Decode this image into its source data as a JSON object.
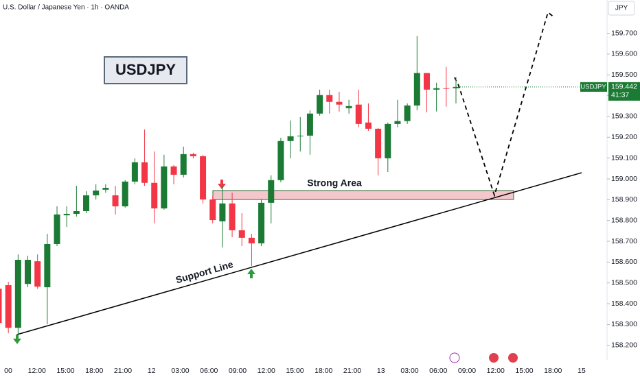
{
  "chart_data": {
    "type": "candlestick",
    "title": "U.S. Dollar / Japanese Yen · 1h · OANDA",
    "symbol_box": "USDJPY",
    "currency_button": "JPY",
    "annotations": [
      "Strong Area",
      "Support Line"
    ],
    "up_color": "#1b7a34",
    "down_color": "#f23645",
    "xlabels": [
      "00",
      "12:00",
      "15:00",
      "18:00",
      "21:00",
      "12",
      "03:00",
      "06:00",
      "09:00",
      "12:00",
      "15:00",
      "18:00",
      "21:00",
      "13",
      "03:00",
      "06:00",
      "09:00",
      "12:00",
      "15:00",
      "18:00",
      "15"
    ],
    "open": [
      158.472,
      158.489,
      158.284,
      158.495,
      158.604,
      158.479,
      158.687,
      158.825,
      158.832,
      158.845,
      158.921,
      158.948,
      158.921,
      158.868,
      158.987,
      159.08,
      158.981,
      158.858,
      159.06,
      159.02,
      159.119,
      159.109,
      158.901,
      158.796,
      158.882,
      158.753,
      158.717,
      158.69,
      158.885,
      158.994,
      159.182,
      159.205,
      159.208,
      159.314,
      159.403,
      159.37,
      159.34,
      159.357,
      159.271,
      159.241,
      159.099,
      159.264,
      159.278,
      159.353,
      159.509,
      159.429,
      159.436,
      159.436
    ],
    "high": [
      158.479,
      158.505,
      158.637,
      158.631,
      158.637,
      158.736,
      158.868,
      158.868,
      158.967,
      158.941,
      158.974,
      158.974,
      158.967,
      158.994,
      159.099,
      159.238,
      159.132,
      159.116,
      159.066,
      159.155,
      159.126,
      159.116,
      158.918,
      158.967,
      158.934,
      158.835,
      158.736,
      158.901,
      159.017,
      159.198,
      159.281,
      159.297,
      159.33,
      159.429,
      159.429,
      159.419,
      159.38,
      159.429,
      159.363,
      159.245,
      159.271,
      159.38,
      159.363,
      159.687,
      159.509,
      159.462,
      159.538,
      159.489
    ],
    "low": [
      158.301,
      158.258,
      158.248,
      158.479,
      158.472,
      158.301,
      158.677,
      158.769,
      158.819,
      158.835,
      158.901,
      158.934,
      158.829,
      158.862,
      158.974,
      158.967,
      158.786,
      158.852,
      158.974,
      159.007,
      159.099,
      158.882,
      158.786,
      158.67,
      158.72,
      158.677,
      158.581,
      158.677,
      158.786,
      158.984,
      159.099,
      159.132,
      159.116,
      159.304,
      159.314,
      159.324,
      159.314,
      159.248,
      159.231,
      159.017,
      159.033,
      159.248,
      159.264,
      159.33,
      159.32,
      159.324,
      159.347,
      159.363
    ],
    "close": [
      158.307,
      158.284,
      158.611,
      158.611,
      158.482,
      158.687,
      158.829,
      158.832,
      158.845,
      158.921,
      158.944,
      158.957,
      158.868,
      158.987,
      159.08,
      158.981,
      158.858,
      159.06,
      159.02,
      159.119,
      159.109,
      158.901,
      158.802,
      158.882,
      158.753,
      158.717,
      158.69,
      158.885,
      158.994,
      159.182,
      159.205,
      159.208,
      159.314,
      159.403,
      159.37,
      159.357,
      159.35,
      159.264,
      159.241,
      159.099,
      159.264,
      159.278,
      159.353,
      159.509,
      159.429,
      159.436,
      159.433,
      159.442
    ],
    "ylim": [
      158.13,
      159.86
    ],
    "yticks": [
      {
        "value": 158.2,
        "label": "158.200"
      },
      {
        "value": 158.3,
        "label": "158.300"
      },
      {
        "value": 158.4,
        "label": "158.400"
      },
      {
        "value": 158.5,
        "label": "158.500"
      },
      {
        "value": 158.6,
        "label": "158.600"
      },
      {
        "value": 158.7,
        "label": "158.700"
      },
      {
        "value": 158.8,
        "label": "158.800"
      },
      {
        "value": 158.9,
        "label": "158.900"
      },
      {
        "value": 159.0,
        "label": "159.000"
      },
      {
        "value": 159.1,
        "label": "159.100"
      },
      {
        "value": 159.2,
        "label": "159.200"
      },
      {
        "value": 159.3,
        "label": "159.300"
      },
      {
        "value": 159.4,
        "label": "159.400"
      },
      {
        "value": 159.5,
        "label": "159.500"
      },
      {
        "value": 159.6,
        "label": "159.600"
      },
      {
        "value": 159.7,
        "label": "159.700"
      }
    ],
    "last_price": 159.442,
    "price_tag": "USDJPY",
    "countdown": "41:37"
  }
}
